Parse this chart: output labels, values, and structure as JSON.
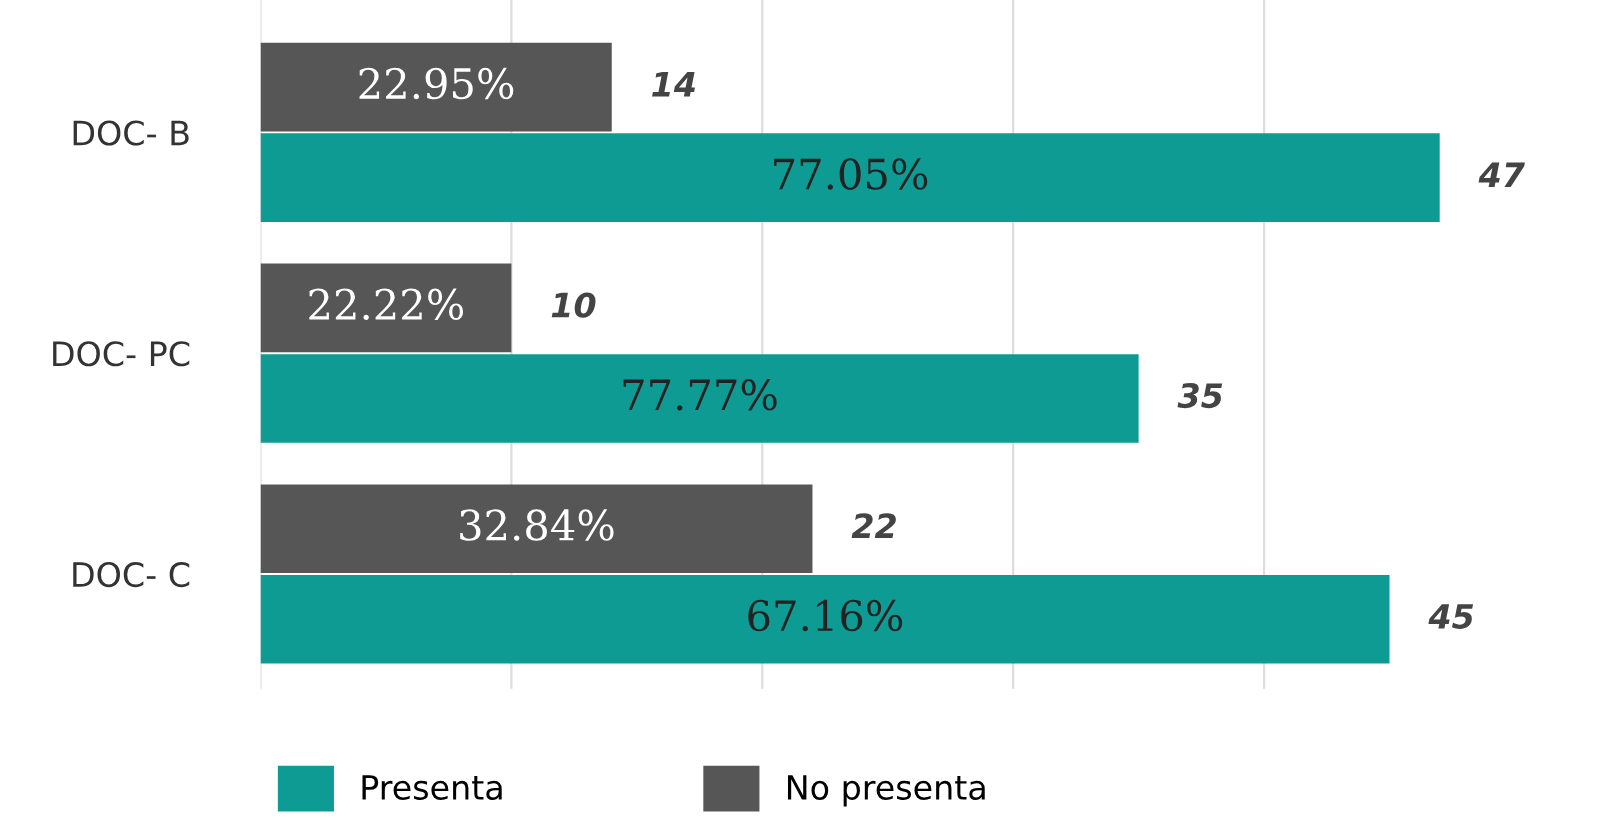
{
  "chart_data": {
    "type": "bar",
    "orientation": "horizontal",
    "categories": [
      "DOC- B",
      "DOC- PC",
      "DOC- C"
    ],
    "series": [
      {
        "name": "Presenta",
        "color": "#0e9b94",
        "values": [
          47,
          35,
          45
        ]
      },
      {
        "name": "No presenta",
        "color": "#565656",
        "values": [
          14,
          10,
          22
        ]
      }
    ],
    "annotations": [
      "77.05%",
      "77.77%",
      "67.16%",
      "22.95%",
      "22.22%",
      "32.84%"
    ],
    "tick_labels": "y",
    "grid": "x",
    "data_labels": true,
    "legend": "bottom"
  }
}
